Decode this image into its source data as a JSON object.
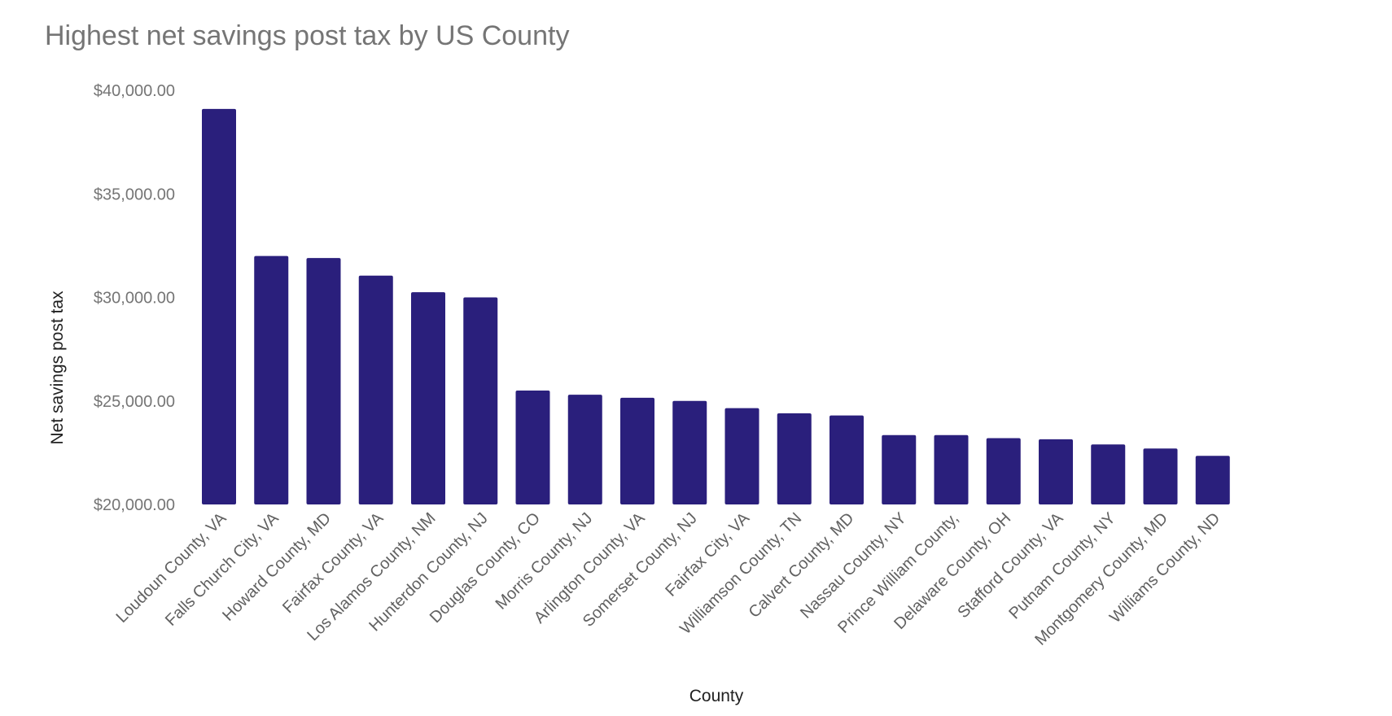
{
  "chart_data": {
    "type": "bar",
    "title": "Highest net savings post tax by US County",
    "xlabel": "County",
    "ylabel": "Net savings post tax",
    "ylim": [
      20000,
      40000
    ],
    "yticks": [
      "$20,000.00",
      "$25,000.00",
      "$30,000.00",
      "$35,000.00",
      "$40,000.00"
    ],
    "ytick_values": [
      20000,
      25000,
      30000,
      35000,
      40000
    ],
    "grid": false,
    "bar_color": "#2a1f7c",
    "categories": [
      "Loudoun County, VA",
      "Falls Church City, VA",
      "Howard County, MD",
      "Fairfax County, VA",
      "Los Alamos County, NM",
      "Hunterdon County, NJ",
      "Douglas County, CO",
      "Morris County, NJ",
      "Arlington County, VA",
      "Somerset County, NJ",
      "Fairfax City, VA",
      "Williamson County, TN",
      "Calvert County, MD",
      "Nassau County, NY",
      "Prince William County,",
      "Delaware County, OH",
      "Stafford County, VA",
      "Putnam County, NY",
      "Montgomery County, MD",
      "Williams County, ND"
    ],
    "values": [
      39100,
      32000,
      31900,
      31050,
      30250,
      30000,
      25500,
      25300,
      25150,
      25000,
      24650,
      24400,
      24300,
      23350,
      23350,
      23200,
      23150,
      22900,
      22700,
      22350
    ]
  }
}
